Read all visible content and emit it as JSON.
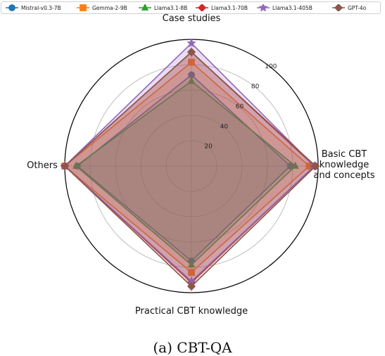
{
  "chart_data": {
    "type": "radar",
    "axes": [
      "Basic CBT knowledge and concepts",
      "Case studies",
      "Others",
      "Practical CBT knowledge"
    ],
    "axis_label_lines": [
      [
        "Basic CBT",
        "knowledge",
        "and concepts"
      ],
      [
        "Case studies"
      ],
      [
        "Others"
      ],
      [
        "Practical CBT knowledge"
      ]
    ],
    "rlim": [
      0,
      100
    ],
    "rticks": [
      20,
      40,
      60,
      80,
      100
    ],
    "grid": true,
    "legend_position": "top",
    "series": [
      {
        "name": "Mistral-v0.3-7B",
        "values": [
          78,
          72,
          90,
          75
        ],
        "color": "#1f77b4",
        "marker": "circle"
      },
      {
        "name": "Gemma-2-9B",
        "values": [
          93,
          82,
          100,
          84
        ],
        "color": "#ff7f0e",
        "marker": "square"
      },
      {
        "name": "Llama3.1-8B",
        "values": [
          82,
          67,
          91,
          78
        ],
        "color": "#2ca02c",
        "marker": "triangle"
      },
      {
        "name": "Llama3.1-70B",
        "values": [
          97,
          90,
          100,
          92
        ],
        "color": "#d62728",
        "marker": "diamond"
      },
      {
        "name": "Llama3.1-405B",
        "values": [
          97,
          97,
          100,
          91
        ],
        "color": "#9467bd",
        "marker": "star"
      },
      {
        "name": "GPT-4o",
        "values": [
          98,
          90,
          100,
          95
        ],
        "color": "#8c564b",
        "marker": "diamond"
      }
    ]
  },
  "caption": "(a) CBT-QA"
}
